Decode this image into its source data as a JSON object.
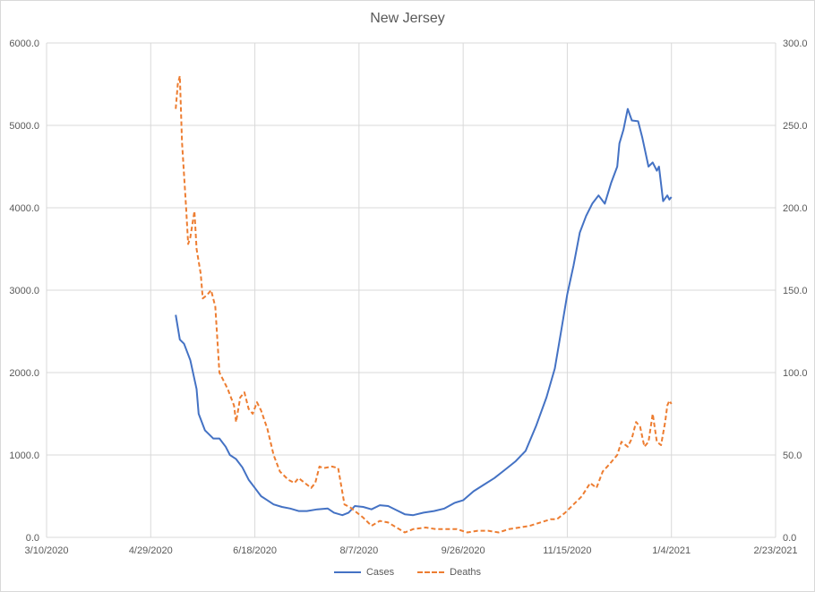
{
  "chart_data": {
    "type": "line",
    "title": "New Jersey",
    "x_ticks": [
      "3/10/2020",
      "4/29/2020",
      "6/18/2020",
      "8/7/2020",
      "9/26/2020",
      "11/15/2020",
      "1/4/2021",
      "2/23/2021"
    ],
    "x_range": [
      "3/10/2020",
      "2/23/2021"
    ],
    "y_left": {
      "ticks": [
        "0.0",
        "1000.0",
        "2000.0",
        "3000.0",
        "4000.0",
        "5000.0",
        "6000.0"
      ],
      "range": [
        0,
        6000
      ]
    },
    "y_right": {
      "ticks": [
        "0.0",
        "50.0",
        "100.0",
        "150.0",
        "200.0",
        "250.0",
        "300.0"
      ],
      "range": [
        0,
        300
      ]
    },
    "grid": true,
    "legend_position": "bottom",
    "colors": {
      "cases": "#4472c4",
      "deaths": "#ed7d31",
      "grid": "#d9d9d9"
    },
    "series": [
      {
        "name": "Cases",
        "axis": "left",
        "style": "solid",
        "points": [
          [
            "5/11/2020",
            2700
          ],
          [
            "5/13/2020",
            2400
          ],
          [
            "5/15/2020",
            2350
          ],
          [
            "5/18/2020",
            2150
          ],
          [
            "5/21/2020",
            1800
          ],
          [
            "5/22/2020",
            1500
          ],
          [
            "5/25/2020",
            1300
          ],
          [
            "5/29/2020",
            1200
          ],
          [
            "6/1/2020",
            1200
          ],
          [
            "6/4/2020",
            1100
          ],
          [
            "6/6/2020",
            1000
          ],
          [
            "6/9/2020",
            950
          ],
          [
            "6/12/2020",
            850
          ],
          [
            "6/15/2020",
            700
          ],
          [
            "6/18/2020",
            600
          ],
          [
            "6/21/2020",
            500
          ],
          [
            "6/24/2020",
            450
          ],
          [
            "6/27/2020",
            400
          ],
          [
            "7/1/2020",
            370
          ],
          [
            "7/5/2020",
            350
          ],
          [
            "7/9/2020",
            320
          ],
          [
            "7/13/2020",
            320
          ],
          [
            "7/18/2020",
            340
          ],
          [
            "7/23/2020",
            350
          ],
          [
            "7/26/2020",
            300
          ],
          [
            "7/30/2020",
            270
          ],
          [
            "8/2/2020",
            300
          ],
          [
            "8/5/2020",
            380
          ],
          [
            "8/9/2020",
            370
          ],
          [
            "8/13/2020",
            340
          ],
          [
            "8/17/2020",
            390
          ],
          [
            "8/21/2020",
            380
          ],
          [
            "8/25/2020",
            330
          ],
          [
            "8/29/2020",
            280
          ],
          [
            "9/2/2020",
            270
          ],
          [
            "9/7/2020",
            300
          ],
          [
            "9/12/2020",
            320
          ],
          [
            "9/17/2020",
            350
          ],
          [
            "9/22/2020",
            420
          ],
          [
            "9/26/2020",
            450
          ],
          [
            "10/1/2020",
            560
          ],
          [
            "10/6/2020",
            640
          ],
          [
            "10/11/2020",
            720
          ],
          [
            "10/16/2020",
            820
          ],
          [
            "10/21/2020",
            920
          ],
          [
            "10/26/2020",
            1050
          ],
          [
            "10/31/2020",
            1350
          ],
          [
            "11/5/2020",
            1700
          ],
          [
            "11/9/2020",
            2050
          ],
          [
            "11/12/2020",
            2500
          ],
          [
            "11/15/2020",
            2950
          ],
          [
            "11/18/2020",
            3300
          ],
          [
            "11/21/2020",
            3700
          ],
          [
            "11/24/2020",
            3900
          ],
          [
            "11/27/2020",
            4050
          ],
          [
            "11/30/2020",
            4150
          ],
          [
            "12/3/2020",
            4050
          ],
          [
            "12/6/2020",
            4300
          ],
          [
            "12/9/2020",
            4500
          ],
          [
            "12/10/2020",
            4780
          ],
          [
            "12/12/2020",
            4950
          ],
          [
            "12/14/2020",
            5200
          ],
          [
            "12/16/2020",
            5060
          ],
          [
            "12/19/2020",
            5050
          ],
          [
            "12/21/2020",
            4850
          ],
          [
            "12/24/2020",
            4500
          ],
          [
            "12/26/2020",
            4550
          ],
          [
            "12/28/2020",
            4450
          ],
          [
            "12/29/2020",
            4500
          ],
          [
            "12/31/2020",
            4080
          ],
          [
            "1/2/2021",
            4150
          ],
          [
            "1/3/2021",
            4100
          ],
          [
            "1/4/2021",
            4130
          ]
        ]
      },
      {
        "name": "Deaths",
        "axis": "right",
        "style": "dashed",
        "points": [
          [
            "5/11/2020",
            260
          ],
          [
            "5/12/2020",
            275
          ],
          [
            "5/13/2020",
            280
          ],
          [
            "5/14/2020",
            240
          ],
          [
            "5/16/2020",
            200
          ],
          [
            "5/17/2020",
            178
          ],
          [
            "5/18/2020",
            182
          ],
          [
            "5/20/2020",
            198
          ],
          [
            "5/21/2020",
            175
          ],
          [
            "5/23/2020",
            160
          ],
          [
            "5/24/2020",
            145
          ],
          [
            "5/26/2020",
            147
          ],
          [
            "5/28/2020",
            150
          ],
          [
            "5/30/2020",
            140
          ],
          [
            "6/1/2020",
            100
          ],
          [
            "6/3/2020",
            95
          ],
          [
            "6/5/2020",
            90
          ],
          [
            "6/8/2020",
            80
          ],
          [
            "6/9/2020",
            70
          ],
          [
            "6/11/2020",
            85
          ],
          [
            "6/13/2020",
            88
          ],
          [
            "6/15/2020",
            78
          ],
          [
            "6/17/2020",
            75
          ],
          [
            "6/19/2020",
            82
          ],
          [
            "6/21/2020",
            77
          ],
          [
            "6/24/2020",
            66
          ],
          [
            "6/27/2020",
            50
          ],
          [
            "6/30/2020",
            40
          ],
          [
            "7/4/2020",
            35
          ],
          [
            "7/7/2020",
            33
          ],
          [
            "7/9/2020",
            36
          ],
          [
            "7/12/2020",
            33
          ],
          [
            "7/15/2020",
            30
          ],
          [
            "7/17/2020",
            33
          ],
          [
            "7/19/2020",
            43
          ],
          [
            "7/21/2020",
            42
          ],
          [
            "7/25/2020",
            43
          ],
          [
            "7/28/2020",
            42
          ],
          [
            "7/31/2020",
            20
          ],
          [
            "8/3/2020",
            18
          ],
          [
            "8/6/2020",
            15
          ],
          [
            "8/9/2020",
            12
          ],
          [
            "8/13/2020",
            7
          ],
          [
            "8/17/2020",
            10
          ],
          [
            "8/21/2020",
            9
          ],
          [
            "8/25/2020",
            6
          ],
          [
            "8/29/2020",
            3
          ],
          [
            "9/2/2020",
            5
          ],
          [
            "9/8/2020",
            6
          ],
          [
            "9/13/2020",
            5
          ],
          [
            "9/18/2020",
            5
          ],
          [
            "9/23/2020",
            5
          ],
          [
            "9/28/2020",
            3
          ],
          [
            "10/3/2020",
            4
          ],
          [
            "10/8/2020",
            4
          ],
          [
            "10/13/2020",
            3
          ],
          [
            "10/18/2020",
            5
          ],
          [
            "10/23/2020",
            6
          ],
          [
            "10/28/2020",
            7
          ],
          [
            "11/2/2020",
            9
          ],
          [
            "11/7/2020",
            11
          ],
          [
            "11/10/2020",
            11
          ],
          [
            "11/14/2020",
            15
          ],
          [
            "11/18/2020",
            20
          ],
          [
            "11/22/2020",
            25
          ],
          [
            "11/26/2020",
            33
          ],
          [
            "11/29/2020",
            30
          ],
          [
            "12/2/2020",
            40
          ],
          [
            "12/5/2020",
            44
          ],
          [
            "12/9/2020",
            50
          ],
          [
            "12/11/2020",
            58
          ],
          [
            "12/14/2020",
            55
          ],
          [
            "12/16/2020",
            60
          ],
          [
            "12/18/2020",
            70
          ],
          [
            "12/20/2020",
            67
          ],
          [
            "12/22/2020",
            55
          ],
          [
            "12/24/2020",
            58
          ],
          [
            "12/26/2020",
            75
          ],
          [
            "12/28/2020",
            58
          ],
          [
            "12/30/2020",
            56
          ],
          [
            "1/1/2021",
            70
          ],
          [
            "1/2/2021",
            80
          ],
          [
            "1/3/2021",
            83
          ],
          [
            "1/4/2021",
            81
          ]
        ]
      }
    ]
  }
}
